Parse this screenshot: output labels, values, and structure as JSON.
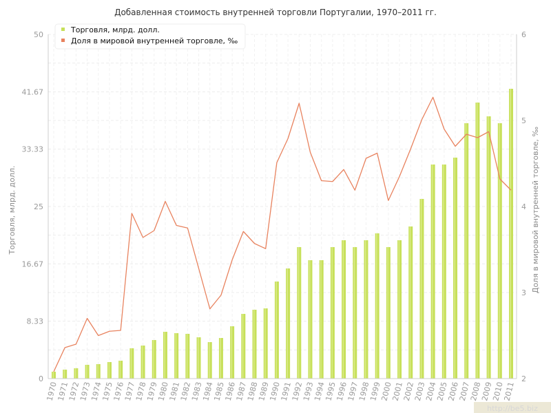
{
  "chart_data": {
    "type": "bar",
    "title": "Добавленная стоимость внутренней торговли Португалии, 1970–2011 гг.",
    "ylabel": "Торговля, млрд. долл.",
    "y2label": "Доля в мировой внутренней торговле, ‰",
    "ylim": [
      0,
      50
    ],
    "y2lim": [
      2,
      6
    ],
    "yticks": [
      "0",
      "8.33",
      "16.67",
      "25",
      "33.33",
      "41.67",
      "50"
    ],
    "y2ticks": [
      "2",
      "3",
      "4",
      "5",
      "6"
    ],
    "grid": true,
    "legend_position": "top-left",
    "categories": [
      "1970",
      "1971",
      "1972",
      "1973",
      "1974",
      "1975",
      "1976",
      "1977",
      "1978",
      "1979",
      "1980",
      "1981",
      "1982",
      "1983",
      "1984",
      "1985",
      "1986",
      "1987",
      "1988",
      "1989",
      "1990",
      "1991",
      "1992",
      "1993",
      "1994",
      "1995",
      "1996",
      "1997",
      "1998",
      "1999",
      "2000",
      "2001",
      "2002",
      "2003",
      "2004",
      "2005",
      "2006",
      "2007",
      "2008",
      "2009",
      "2010",
      "2011"
    ],
    "series": [
      {
        "name": "Торговля, млрд. долл.",
        "type": "bar",
        "axis": "left",
        "color": "#c7e05a",
        "values": [
          1.0,
          1.3,
          1.5,
          2.0,
          2.1,
          2.4,
          2.6,
          4.4,
          4.8,
          5.6,
          6.8,
          6.6,
          6.5,
          6.0,
          5.3,
          5.9,
          7.6,
          9.4,
          10.0,
          10.2,
          14.1,
          16.0,
          19.1,
          17.2,
          17.2,
          19.1,
          20.1,
          19.1,
          20.1,
          21.1,
          19.1,
          20.1,
          22.1,
          26.1,
          31.1,
          31.1,
          32.1,
          37.1,
          40.1,
          38.1,
          37.1,
          42.1
        ]
      },
      {
        "name": "Доля в мировой внутренней торговле, ‰",
        "type": "line",
        "axis": "right",
        "color": "#e8825e",
        "values": [
          2.08,
          2.36,
          2.4,
          2.7,
          2.5,
          2.55,
          2.56,
          3.92,
          3.64,
          3.72,
          4.06,
          3.78,
          3.75,
          3.28,
          2.81,
          2.97,
          3.38,
          3.71,
          3.57,
          3.51,
          4.51,
          4.79,
          5.2,
          4.63,
          4.3,
          4.29,
          4.43,
          4.19,
          4.56,
          4.62,
          4.07,
          4.35,
          4.67,
          5.01,
          5.27,
          4.9,
          4.7,
          4.84,
          4.8,
          4.87,
          4.32,
          4.19
        ]
      }
    ]
  },
  "watermark": "http://be5.biz"
}
